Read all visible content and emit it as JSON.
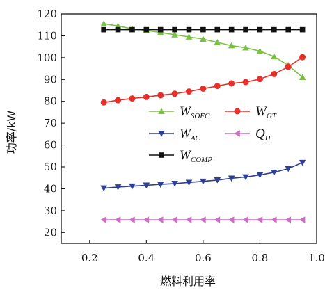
{
  "chart_data": {
    "type": "line",
    "title": "",
    "xlabel": "燃料利用率",
    "ylabel": "功率/kW",
    "xlim": [
      0.1,
      1.0
    ],
    "ylim": [
      15,
      120
    ],
    "xticks": [
      0.2,
      0.4,
      0.6,
      0.8,
      1.0
    ],
    "xtick_labels": [
      "0.2",
      "0.4",
      "0.6",
      "0.8",
      "1.0"
    ],
    "yticks": [
      20,
      30,
      40,
      50,
      60,
      70,
      80,
      90,
      100,
      110,
      120
    ],
    "ytick_labels": [
      "20",
      "30",
      "40",
      "50",
      "60",
      "70",
      "80",
      "90",
      "100",
      "110",
      "120"
    ],
    "grid": false,
    "legend_position": "center",
    "x": [
      0.25,
      0.3,
      0.35,
      0.4,
      0.45,
      0.5,
      0.55,
      0.6,
      0.65,
      0.7,
      0.75,
      0.8,
      0.85,
      0.9,
      0.95
    ],
    "series": [
      {
        "id": "sofc",
        "label_main": "W",
        "label_sub": "SOFC",
        "color": "#7ac043",
        "marker": "triangle-up",
        "values": [
          115.5,
          114.5,
          113.2,
          112.5,
          111.5,
          110.5,
          109.5,
          108.5,
          107.0,
          105.5,
          104.5,
          103.0,
          100.5,
          96.5,
          91.0
        ]
      },
      {
        "id": "gt",
        "label_main": "W",
        "label_sub": "GT",
        "color": "#e8302a",
        "marker": "circle",
        "values": [
          79.5,
          80.5,
          81.3,
          82.0,
          82.8,
          83.5,
          84.5,
          85.8,
          87.0,
          88.2,
          88.8,
          90.2,
          92.5,
          95.8,
          100.2
        ]
      },
      {
        "id": "ac",
        "label_main": "W",
        "label_sub": "AC",
        "color": "#2e3f95",
        "marker": "triangle-down",
        "values": [
          40.3,
          40.8,
          41.2,
          41.6,
          42.0,
          42.4,
          42.9,
          43.4,
          44.0,
          44.8,
          45.4,
          46.3,
          47.5,
          49.2,
          52.0
        ]
      },
      {
        "id": "qh",
        "label_main": "Q",
        "label_sub": "H",
        "color": "#cc6fc2",
        "marker": "triangle-left",
        "values": [
          25.8,
          25.8,
          25.8,
          25.8,
          25.8,
          25.8,
          25.8,
          25.8,
          25.8,
          25.8,
          25.8,
          25.8,
          25.8,
          25.8,
          25.8
        ]
      },
      {
        "id": "comp",
        "label_main": "W",
        "label_sub": "COMP",
        "color": "#111111",
        "marker": "square",
        "values": [
          112.8,
          112.8,
          112.8,
          112.8,
          112.8,
          112.8,
          112.8,
          112.8,
          112.8,
          112.8,
          112.8,
          112.8,
          112.8,
          112.8,
          112.8
        ]
      }
    ]
  }
}
